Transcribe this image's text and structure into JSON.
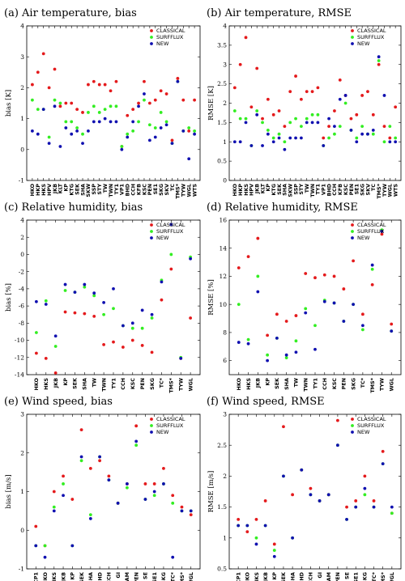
{
  "legend": {
    "entries": [
      "CLASSICAL",
      "SURFFLUX",
      "NEW"
    ],
    "colors": [
      "#e41a1c",
      "#33ee22",
      "#1010b0"
    ],
    "placement": "top-right"
  },
  "chart_data": [
    {
      "type": "scatter",
      "title": "(a) Air temperature, bias",
      "ylabel": "bias [K]",
      "ylim": [
        -1,
        4
      ],
      "yticks": [
        -1,
        0,
        1,
        2,
        3,
        4
      ],
      "categories": [
        "HKO",
        "HKP",
        "HKS",
        "HPV",
        "JKB",
        "KLT",
        "KP",
        "KTG",
        "SEK",
        "SHA",
        "SKW",
        "SSP",
        "STY",
        "TW",
        "TWN",
        "TY1",
        "VP1",
        "BHD",
        "CCH",
        "KFB",
        "KSC",
        "PEN",
        "SE1",
        "SKG",
        "SKV",
        "TC",
        "TMS*",
        "TYW",
        "WGL",
        "WTS"
      ],
      "series": [
        {
          "name": "CLASSICAL",
          "values": [
            2.1,
            2.5,
            3.1,
            2.0,
            2.6,
            1.4,
            1.5,
            1.5,
            1.3,
            1.2,
            2.1,
            2.2,
            2.1,
            2.1,
            1.9,
            2.2,
            0.1,
            1.1,
            1.3,
            1.5,
            2.2,
            1.5,
            1.6,
            1.9,
            1.8,
            0.3,
            2.3,
            1.6,
            0.6,
            1.6
          ]
        },
        {
          "name": "SURFFLUX",
          "values": [
            1.6,
            1.3,
            1.3,
            0.4,
            1.6,
            1.5,
            0.9,
            0.9,
            0.7,
            0.5,
            1.2,
            1.4,
            1.2,
            1.3,
            1.4,
            1.4,
            0.1,
            0.5,
            0.6,
            0.9,
            1.6,
            0.8,
            0.7,
            1.2,
            0.9,
            0.2,
            2.2,
            0.6,
            0.7,
            0.6
          ]
        },
        {
          "name": "NEW",
          "values": [
            0.6,
            0.5,
            1.3,
            0.2,
            1.4,
            0.1,
            0.7,
            0.5,
            0.6,
            0.2,
            0.6,
            0.9,
            0.9,
            1.0,
            0.9,
            0.9,
            0.0,
            0.4,
            0.9,
            1.4,
            1.8,
            0.3,
            0.4,
            0.7,
            0.8,
            0.2,
            2.2,
            0.6,
            -0.3,
            0.5
          ]
        }
      ]
    },
    {
      "type": "scatter",
      "title": "(b) Air temperature, RMSE",
      "ylabel": "RMSE [K]",
      "ylim": [
        0,
        4
      ],
      "yticks": [
        0,
        0.5,
        1,
        1.5,
        2,
        2.5,
        3,
        3.5,
        4
      ],
      "categories": [
        "HKO",
        "HKP",
        "HKS",
        "HPV",
        "JKB",
        "KLT",
        "KP",
        "KTG",
        "SEK",
        "SHA",
        "SKW",
        "SSP",
        "STY",
        "TW",
        "TWN",
        "TY1",
        "VP1",
        "BHD",
        "CCH",
        "KFB",
        "KSC",
        "PEN",
        "SE1",
        "SKG",
        "SKV",
        "TC",
        "TMS*",
        "TYW",
        "WGL",
        "WTS"
      ],
      "series": [
        {
          "name": "CLASSICAL",
          "values": [
            2.4,
            3.0,
            3.7,
            1.9,
            2.9,
            1.6,
            2.1,
            1.7,
            1.8,
            1.4,
            2.3,
            2.7,
            2.1,
            2.3,
            2.3,
            2.4,
            1.1,
            1.4,
            1.8,
            2.6,
            2.2,
            1.6,
            1.7,
            2.2,
            2.3,
            1.7,
            3.0,
            1.4,
            1.1,
            1.9
          ]
        },
        {
          "name": "SURFFLUX",
          "values": [
            1.8,
            1.6,
            1.6,
            0.9,
            1.8,
            1.5,
            1.3,
            1.1,
            1.2,
            1.0,
            1.5,
            1.6,
            1.4,
            1.6,
            1.7,
            1.7,
            0.9,
            1.1,
            1.2,
            1.4,
            2.0,
            1.3,
            1.1,
            1.4,
            1.2,
            1.2,
            3.1,
            1.0,
            1.4,
            1.1
          ]
        },
        {
          "name": "NEW",
          "values": [
            1.0,
            1.0,
            1.5,
            0.9,
            1.7,
            0.9,
            1.2,
            1.0,
            1.1,
            0.8,
            1.1,
            1.1,
            1.1,
            1.5,
            1.5,
            1.5,
            0.9,
            1.6,
            1.4,
            2.1,
            2.2,
            1.3,
            1.0,
            1.2,
            1.2,
            1.3,
            3.2,
            2.2,
            1.0,
            1.0
          ]
        }
      ]
    },
    {
      "type": "scatter",
      "title": "(c) Relative humidity, bias",
      "ylabel": "bias [%]",
      "ylim": [
        -14,
        4
      ],
      "yticks": [
        -14,
        -12,
        -10,
        -8,
        -6,
        -4,
        -2,
        0,
        2,
        4
      ],
      "categories": [
        "HKO",
        "HKS",
        "JKB",
        "KP",
        "SEK",
        "SHA",
        "TW",
        "TWN",
        "TY1",
        "CCH",
        "KSC",
        "PEN",
        "SKG",
        "TC*",
        "TMS*",
        "TYW",
        "WGL"
      ],
      "series": [
        {
          "name": "CLASSICAL",
          "values": [
            -11.5,
            -12.1,
            -13.8,
            -6.7,
            -6.8,
            -6.9,
            -7.2,
            -10.5,
            -10.2,
            -10.8,
            -10.0,
            -10.6,
            -11.4,
            -5.3,
            -1.7,
            -12.1,
            -7.4
          ]
        },
        {
          "name": "SURFFLUX",
          "values": [
            -9.1,
            -5.4,
            -10.7,
            -4.2,
            -4.4,
            -3.8,
            -4.8,
            -7.0,
            -6.3,
            -8.3,
            -8.6,
            -8.6,
            -7.4,
            -3.0,
            0.0,
            -12.0,
            -0.3
          ]
        },
        {
          "name": "NEW",
          "values": [
            -5.5,
            -5.8,
            -9.5,
            -3.5,
            -4.4,
            -3.5,
            -4.5,
            -5.6,
            -4.0,
            -8.3,
            -8.0,
            -6.5,
            -7.0,
            -3.2,
            3.5,
            -12.1,
            -0.5
          ]
        }
      ]
    },
    {
      "type": "scatter",
      "title": "(d) Relative humidity, RMSE",
      "ylabel": "RMSE [%]",
      "ylim": [
        5,
        16
      ],
      "yticks": [
        6,
        8,
        10,
        12,
        14,
        16
      ],
      "categories": [
        "HKO",
        "HKS",
        "JKB",
        "KP",
        "SEK",
        "SHA",
        "TW",
        "TWN",
        "TY1",
        "CCH",
        "KSC",
        "PEN",
        "SKG",
        "TC*",
        "TMS*",
        "TYW",
        "WGL"
      ],
      "series": [
        {
          "name": "CLASSICAL",
          "values": [
            12.6,
            13.4,
            14.7,
            7.8,
            9.3,
            8.8,
            9.2,
            12.2,
            11.9,
            12.1,
            12.0,
            11.1,
            13.1,
            9.3,
            11.4,
            15.0,
            8.6
          ]
        },
        {
          "name": "SURFFLUX",
          "values": [
            10.0,
            7.5,
            12.0,
            6.4,
            7.6,
            6.2,
            7.4,
            9.7,
            8.5,
            10.3,
            10.1,
            8.8,
            10.0,
            8.2,
            12.5,
            15.3,
            8.1
          ]
        },
        {
          "name": "NEW",
          "values": [
            7.3,
            7.2,
            10.9,
            6.0,
            7.6,
            6.4,
            6.6,
            9.4,
            6.8,
            10.2,
            10.1,
            8.8,
            10.0,
            8.5,
            12.8,
            15.2,
            8.1
          ]
        }
      ]
    },
    {
      "type": "scatter",
      "title": "(e) Wind speed, bias",
      "ylabel": "bias [m/s]",
      "ylim": [
        -1,
        3
      ],
      "yticks": [
        -1,
        0,
        1,
        2,
        3
      ],
      "categories": [
        "CP1",
        "HKO",
        "HKS",
        "JKB",
        "KP",
        "SEK",
        "SHA",
        "BHD",
        "CCH",
        "GI",
        "LAM",
        "PEN",
        "SE",
        "SE1",
        "SKG",
        "TC*",
        "TMS*",
        "WGL"
      ],
      "series": [
        {
          "name": "CLASSICAL",
          "values": [
            0.1,
            -0.4,
            1.0,
            1.4,
            0.8,
            2.6,
            1.6,
            1.8,
            1.4,
            0.7,
            1.2,
            2.7,
            1.2,
            1.2,
            1.6,
            0.9,
            0.6,
            0.4
          ]
        },
        {
          "name": "SURFFLUX",
          "values": [
            -0.4,
            -0.4,
            0.6,
            1.2,
            -0.4,
            1.8,
            0.4,
            1.9,
            1.3,
            0.7,
            1.1,
            2.2,
            0.8,
            0.9,
            1.2,
            0.7,
            0.5,
            0.5
          ]
        },
        {
          "name": "NEW",
          "values": [
            -0.4,
            -0.7,
            0.5,
            0.9,
            -0.4,
            1.9,
            0.3,
            1.9,
            1.3,
            0.7,
            1.2,
            2.3,
            0.8,
            1.0,
            1.2,
            -0.7,
            0.5,
            0.5
          ]
        }
      ]
    },
    {
      "type": "scatter",
      "title": "(f) Wind speed, RMSE",
      "ylabel": "RMSE [m/s]",
      "ylim": [
        0.5,
        3
      ],
      "yticks": [
        0.5,
        1,
        1.5,
        2,
        2.5,
        3
      ],
      "categories": [
        "CP1",
        "HKO",
        "HKS",
        "JKB",
        "KP",
        "SEK",
        "SHA",
        "BHD",
        "CCH",
        "GI",
        "LAM",
        "PEN",
        "SE",
        "SE1",
        "SKG",
        "TC*",
        "TMS*",
        "WGL"
      ],
      "series": [
        {
          "name": "CLASSICAL",
          "values": [
            1.3,
            1.1,
            1.3,
            1.6,
            0.9,
            2.8,
            1.7,
            2.1,
            1.8,
            1.6,
            1.7,
            2.9,
            1.5,
            1.6,
            2.0,
            1.6,
            2.4,
            1.4
          ]
        },
        {
          "name": "SURFFLUX",
          "values": [
            1.2,
            1.2,
            1.0,
            1.2,
            0.8,
            2.0,
            1.0,
            2.1,
            1.7,
            1.6,
            1.7,
            2.5,
            1.3,
            1.5,
            1.7,
            1.5,
            2.2,
            1.4
          ]
        },
        {
          "name": "NEW",
          "values": [
            1.2,
            1.2,
            0.9,
            1.2,
            0.7,
            2.0,
            1.0,
            2.1,
            1.7,
            1.6,
            1.7,
            2.5,
            1.3,
            1.5,
            1.8,
            1.5,
            2.2,
            1.5
          ]
        }
      ]
    }
  ]
}
